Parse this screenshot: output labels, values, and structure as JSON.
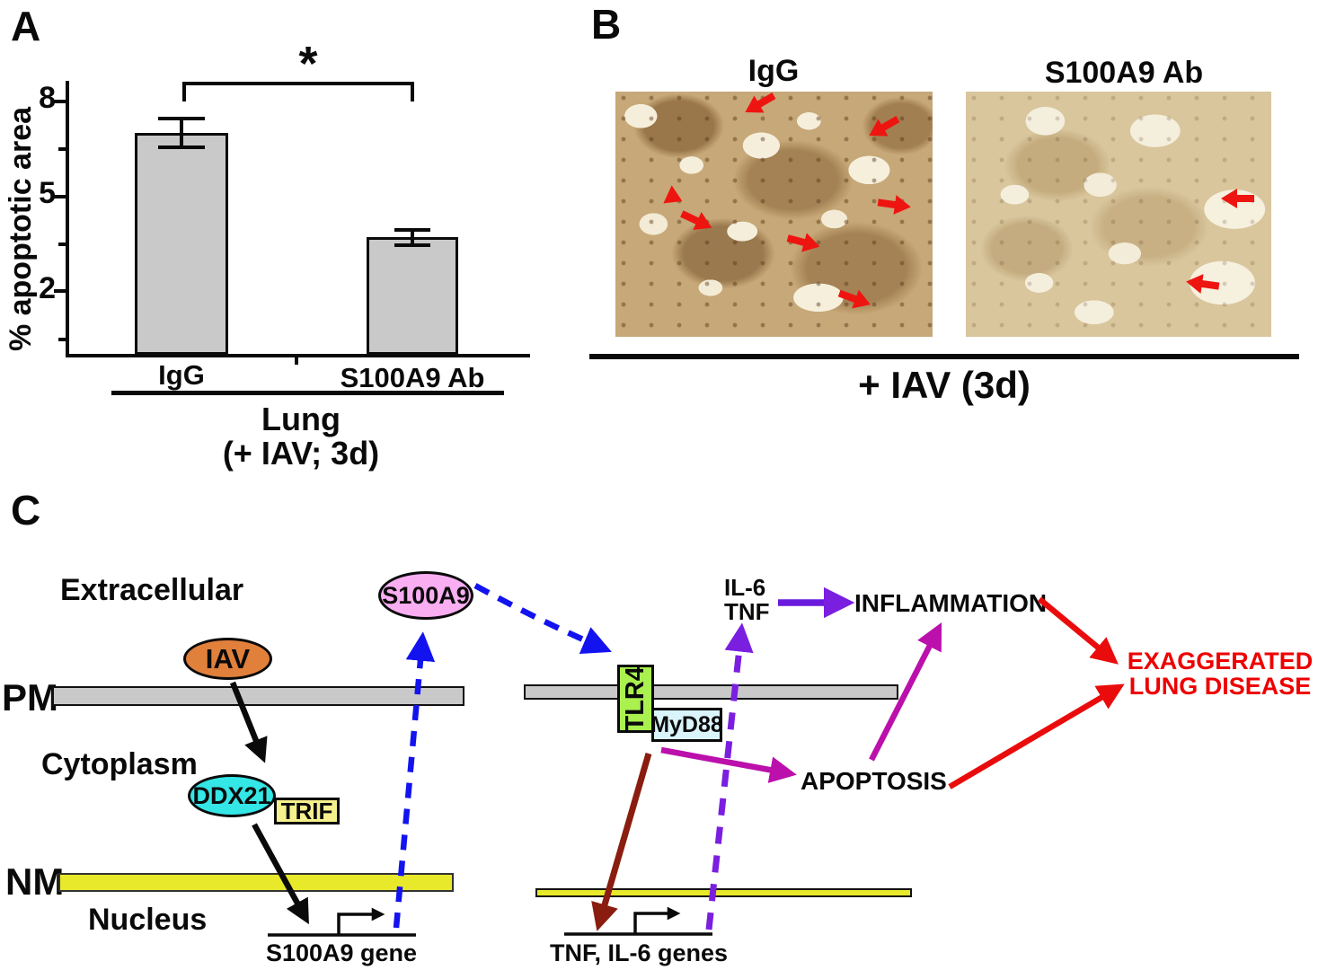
{
  "figure": {
    "panel_a_label": "A",
    "panel_b_label": "B",
    "panel_c_label": "C"
  },
  "chart_data": {
    "type": "bar",
    "categories": [
      "IgG",
      "S100A9 Ab"
    ],
    "values": [
      7.0,
      3.7
    ],
    "errors": [
      0.5,
      0.3
    ],
    "ylabel": "% apoptotic area",
    "yticks": [
      2,
      5,
      8
    ],
    "ylim": [
      0,
      8.7
    ],
    "grid": false,
    "significance": "*",
    "significance_between": [
      "IgG",
      "S100A9 Ab"
    ],
    "group_label": "Lung (+ IAV; 3d)",
    "bar_fill": "#c9c9c9"
  },
  "panel_a": {
    "ylabel": "% apoptotic area",
    "y_tick_labels": [
      "8",
      "5",
      "2"
    ],
    "sig": "*",
    "cat1": "IgG",
    "cat2": "S100A9 Ab",
    "group1": "Lung",
    "group2": "(+ IAV; 3d)"
  },
  "panel_b": {
    "title_left": "IgG",
    "title_right": "S100A9 Ab",
    "caption": "+ IAV (3d)"
  },
  "panel_c": {
    "extracellular": "Extracellular",
    "pm": "PM",
    "cytoplasm": "Cytoplasm",
    "nm": "NM",
    "nucleus": "Nucleus",
    "iav": "IAV",
    "s100a9": "S100A9",
    "ddx21": "DDX21",
    "trif": "TRIF",
    "tlr4": "TLR4",
    "myd88": "MyD88",
    "il6": "IL-6",
    "tnf": "TNF",
    "inflammation": "INFLAMMATION",
    "apoptosis": "APOPTOSIS",
    "exaggerated1": "EXAGGERATED",
    "exaggerated2": "LUNG DISEASE",
    "s100a9_gene": "S100A9 gene",
    "tnf_il6_genes": "TNF, IL-6 genes"
  },
  "colors": {
    "iav_fill": "#e0803b",
    "s100a9_fill": "#f9aef2",
    "ddx21_fill": "#35e6e6",
    "trif_fill": "#f6f08d",
    "tlr4_fill": "#aaf04f",
    "myd88_fill": "#daf4fb",
    "pm_fill": "#c9c9c9",
    "nm_fill": "#e9e92b",
    "blue_arrow": "#1313ef",
    "purple_arrow": "#7a1fe0",
    "magenta_arrow": "#bb10ab",
    "maroon_arrow": "#8a1d0f",
    "red_arrow": "#ea0c0c",
    "outcome_text": "#ee0000"
  }
}
